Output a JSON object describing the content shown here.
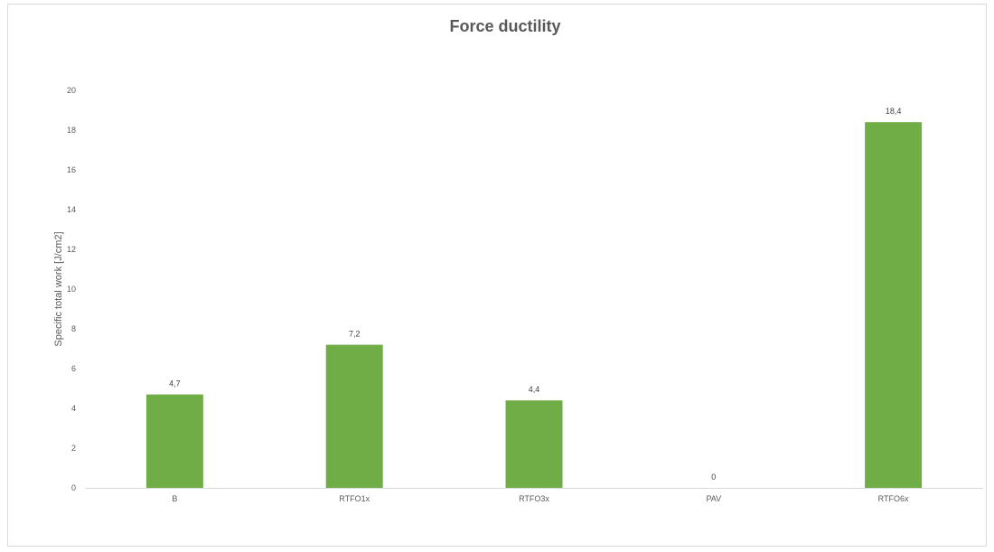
{
  "chart_data": {
    "type": "bar",
    "title": "Force ductility",
    "xlabel": "",
    "ylabel": "Specific total work [J/cm2]",
    "categories": [
      "B",
      "RTFO1x",
      "RTFO3x",
      "PAV",
      "RTFO6x"
    ],
    "values": [
      4.7,
      7.2,
      4.4,
      0,
      18.4
    ],
    "data_labels": [
      "4,7",
      "7,2",
      "4,4",
      "0",
      "18,4"
    ],
    "ylim": [
      0,
      20
    ],
    "yticks": [
      0,
      2,
      4,
      6,
      8,
      10,
      12,
      14,
      16,
      18,
      20
    ],
    "grid": false,
    "legend": "none",
    "bar_color": "#70ad47",
    "axis_color": "#d9d9d9"
  }
}
